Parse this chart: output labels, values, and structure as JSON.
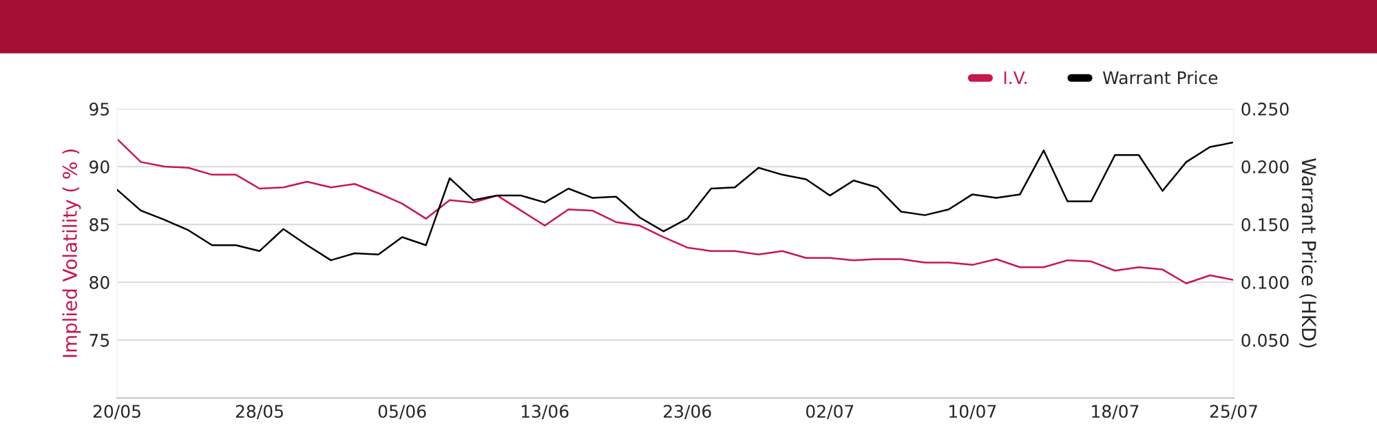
{
  "chart_data": {
    "type": "line",
    "ylabel": "Implied Volatility ( % )",
    "y2label": "Warrant Price (HKD)",
    "categories": [
      "20/05",
      null,
      null,
      null,
      null,
      null,
      "28/05",
      null,
      null,
      null,
      null,
      null,
      "05/06",
      null,
      null,
      null,
      null,
      null,
      "13/06",
      null,
      null,
      null,
      null,
      null,
      "23/06",
      null,
      null,
      null,
      null,
      null,
      "02/07",
      null,
      null,
      null,
      null,
      null,
      "10/07",
      null,
      null,
      null,
      null,
      null,
      "18/07",
      null,
      null,
      null,
      null,
      "25/07"
    ],
    "series": [
      {
        "name": "I.V.",
        "color": "#c8174a",
        "values": [
          92.4,
          90.4,
          90.0,
          89.9,
          89.3,
          89.3,
          88.1,
          88.2,
          88.7,
          88.2,
          88.5,
          87.7,
          86.8,
          85.5,
          87.1,
          86.9,
          87.5,
          86.2,
          84.9,
          86.3,
          86.2,
          85.2,
          84.9,
          83.9,
          83.0,
          82.7,
          82.7,
          82.4,
          82.7,
          82.1,
          82.1,
          81.9,
          82.0,
          82.0,
          81.7,
          81.7,
          81.5,
          82.0,
          81.3,
          81.3,
          81.9,
          81.8,
          81.0,
          81.3,
          81.1,
          79.9,
          80.6,
          80.2
        ]
      },
      {
        "name": "Warrant Price",
        "color": "#000000",
        "axis": "y2",
        "values": [
          0.18,
          0.162,
          0.154,
          0.145,
          0.132,
          0.132,
          0.127,
          0.146,
          0.132,
          0.119,
          0.125,
          0.124,
          0.139,
          0.132,
          0.19,
          0.171,
          0.175,
          0.175,
          0.169,
          0.181,
          0.173,
          0.174,
          0.156,
          0.144,
          0.155,
          0.181,
          0.182,
          0.199,
          0.193,
          0.189,
          0.175,
          0.188,
          0.182,
          0.161,
          0.158,
          0.163,
          0.176,
          0.173,
          0.176,
          0.214,
          0.17,
          0.17,
          0.21,
          0.21,
          0.179,
          0.204,
          0.217,
          0.221
        ]
      }
    ],
    "ylim": [
      70,
      95
    ],
    "yticks": [
      75,
      80,
      85,
      90,
      95
    ],
    "y2lim": [
      0,
      0.25
    ],
    "y2ticks": [
      {
        "value": 0.05,
        "label": "0.050"
      },
      {
        "value": 0.1,
        "label": "0.100"
      },
      {
        "value": 0.15,
        "label": "0.150"
      },
      {
        "value": 0.2,
        "label": "0.200"
      },
      {
        "value": 0.25,
        "label": "0.250"
      }
    ],
    "grid": "y",
    "legend": "top right",
    "marker": "none",
    "line_style": "solid"
  }
}
